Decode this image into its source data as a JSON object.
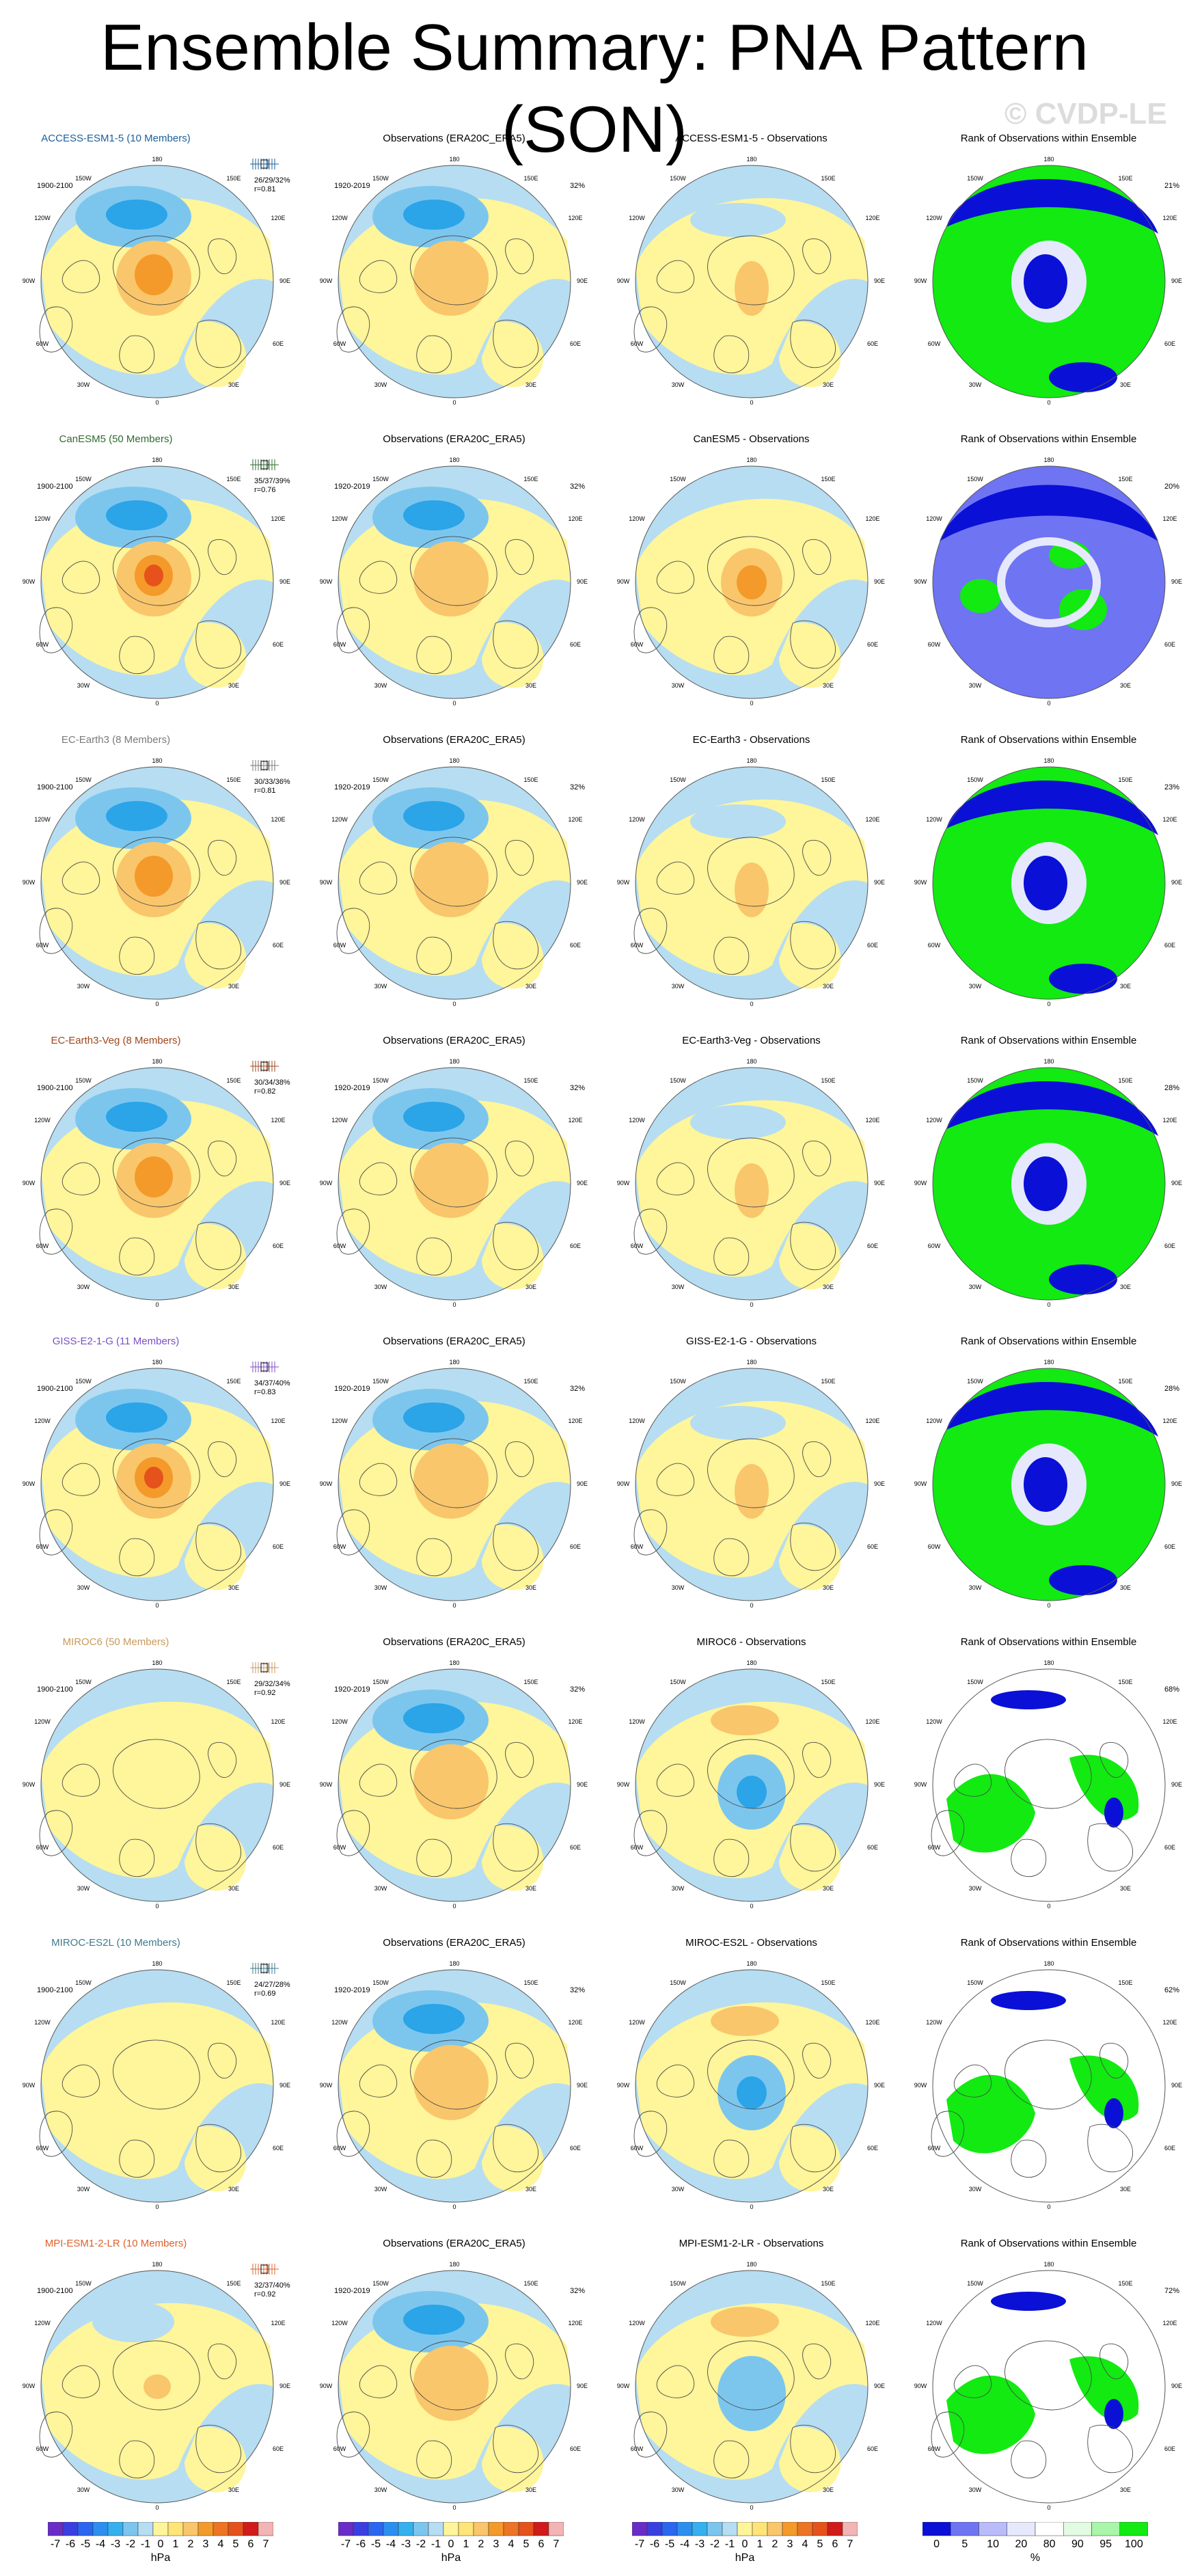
{
  "title": "Ensemble Summary: PNA Pattern (SON)",
  "watermark": "© CVDP-LE",
  "colors": {
    "pos_light": "#fff59a",
    "neg_light": "#b6ddf2",
    "neg_mid": "#7cc6ee",
    "neg_strong": "#2ba4e8",
    "pos_mid": "#f9c66b",
    "pos_strong": "#f49a2a",
    "pos_max": "#e5521b",
    "pos_extreme": "#d11a1a",
    "rank_blue": "#0a10d6",
    "rank_green": "#12ea12",
    "rank_lightblue": "#6f74f3",
    "rank_pale": "#e6e9fb"
  },
  "map_labels": {
    "lon_top": "180",
    "lon_bottom": "0",
    "lon_150w": "150W",
    "lon_150e": "150E",
    "lon_120w": "120W",
    "lon_120e": "120E",
    "lon_90w": "90W",
    "lon_90e": "90E",
    "lon_60w": "60W",
    "lon_60e": "60E",
    "lon_30w": "30W",
    "lon_30e": "30E"
  },
  "rows": [
    {
      "model": "ACCESS-ESM1-5 (10 Members)",
      "model_color": "#1a5f9c",
      "model_period": "1900-2100",
      "stats_line1": "26/29/32%",
      "stats_line2": "r=0.81",
      "obs_title": "Observations (ERA20C_ERA5)",
      "obs_period": "1920-2019",
      "obs_pct": "32%",
      "diff_title": "ACCESS-ESM1-5 - Observations",
      "rank_title": "Rank of Observations within Ensemble",
      "rank_pct": "21%",
      "model_intensity": "strong",
      "diff_intensity": "weak",
      "rank_style": "mixed_blue_green"
    },
    {
      "model": "CanESM5 (50 Members)",
      "model_color": "#2e6b2e",
      "model_period": "1900-2100",
      "stats_line1": "35/37/39%",
      "stats_line2": "r=0.76",
      "obs_title": "Observations (ERA20C_ERA5)",
      "obs_period": "1920-2019",
      "obs_pct": "32%",
      "diff_title": "CanESM5 - Observations",
      "rank_title": "Rank of Observations within Ensemble",
      "rank_pct": "20%",
      "model_intensity": "very_strong",
      "diff_intensity": "medium",
      "rank_style": "lightblue"
    },
    {
      "model": "EC-Earth3 (8 Members)",
      "model_color": "#7a7a7a",
      "model_period": "1900-2100",
      "stats_line1": "30/33/36%",
      "stats_line2": "r=0.81",
      "obs_title": "Observations (ERA20C_ERA5)",
      "obs_period": "1920-2019",
      "obs_pct": "32%",
      "diff_title": "EC-Earth3 - Observations",
      "rank_title": "Rank of Observations within Ensemble",
      "rank_pct": "23%",
      "model_intensity": "strong",
      "diff_intensity": "weak",
      "rank_style": "mixed_blue_green"
    },
    {
      "model": "EC-Earth3-Veg (8 Members)",
      "model_color": "#a0461c",
      "model_period": "1900-2100",
      "stats_line1": "30/34/38%",
      "stats_line2": "r=0.82",
      "obs_title": "Observations (ERA20C_ERA5)",
      "obs_period": "1920-2019",
      "obs_pct": "32%",
      "diff_title": "EC-Earth3-Veg - Observations",
      "rank_title": "Rank of Observations within Ensemble",
      "rank_pct": "28%",
      "model_intensity": "strong",
      "diff_intensity": "weak",
      "rank_style": "mixed_blue_green"
    },
    {
      "model": "GISS-E2-1-G (11 Members)",
      "model_color": "#7b4fc7",
      "model_period": "1900-2100",
      "stats_line1": "34/37/40%",
      "stats_line2": "r=0.83",
      "obs_title": "Observations (ERA20C_ERA5)",
      "obs_period": "1920-2019",
      "obs_pct": "32%",
      "diff_title": "GISS-E2-1-G - Observations",
      "rank_title": "Rank of Observations within Ensemble",
      "rank_pct": "28%",
      "model_intensity": "very_strong",
      "diff_intensity": "weak",
      "rank_style": "mixed_blue_green"
    },
    {
      "model": "MIROC6 (50 Members)",
      "model_color": "#c89a5a",
      "model_period": "1900-2100",
      "stats_line1": "29/32/34%",
      "stats_line2": "r=0.92",
      "obs_title": "Observations (ERA20C_ERA5)",
      "obs_period": "1920-2019",
      "obs_pct": "32%",
      "diff_title": "MIROC6 - Observations",
      "rank_title": "Rank of Observations within Ensemble",
      "rank_pct": "68%",
      "model_intensity": "very_weak",
      "diff_intensity": "negative",
      "rank_style": "sparse_green"
    },
    {
      "model": "MIROC-ES2L (10 Members)",
      "model_color": "#3f7a8c",
      "model_period": "1900-2100",
      "stats_line1": "24/27/28%",
      "stats_line2": "r=0.69",
      "obs_title": "Observations (ERA20C_ERA5)",
      "obs_period": "1920-2019",
      "obs_pct": "32%",
      "diff_title": "MIROC-ES2L - Observations",
      "rank_title": "Rank of Observations within Ensemble",
      "rank_pct": "62%",
      "model_intensity": "very_weak",
      "diff_intensity": "negative",
      "rank_style": "sparse_green"
    },
    {
      "model": "MPI-ESM1-2-LR (10 Members)",
      "model_color": "#e0602a",
      "model_period": "1900-2100",
      "stats_line1": "32/37/40%",
      "stats_line2": "r=0.92",
      "obs_title": "Observations (ERA20C_ERA5)",
      "obs_period": "1920-2019",
      "obs_pct": "32%",
      "diff_title": "MPI-ESM1-2-LR - Observations",
      "rank_title": "Rank of Observations within Ensemble",
      "rank_pct": "72%",
      "model_intensity": "weak",
      "diff_intensity": "negative_weak",
      "rank_style": "sparse_green"
    }
  ],
  "colorbars": {
    "hpa_labels": [
      "-7",
      "-6",
      "-5",
      "-4",
      "-3",
      "-2",
      "-1",
      "0",
      "1",
      "2",
      "3",
      "4",
      "5",
      "6",
      "7"
    ],
    "hpa_colors": [
      "#6a2cc7",
      "#3a3fe0",
      "#2a66ef",
      "#2c8fef",
      "#35b0ee",
      "#7cc6ee",
      "#b6ddf2",
      "#fff59a",
      "#ffe577",
      "#f9c66b",
      "#f49a2a",
      "#ec7424",
      "#e5521b",
      "#d11a1a",
      "#f2b4b4"
    ],
    "hpa_unit": "hPa",
    "pct_labels": [
      "0",
      "5",
      "10",
      "20",
      "80",
      "90",
      "95",
      "100"
    ],
    "pct_colors": [
      "#0a10d6",
      "#6f74f3",
      "#b9bcf8",
      "#e6e9fb",
      "#ffffff",
      "#e3fbe3",
      "#a9f5a9",
      "#12ea12"
    ],
    "pct_unit": "%"
  }
}
